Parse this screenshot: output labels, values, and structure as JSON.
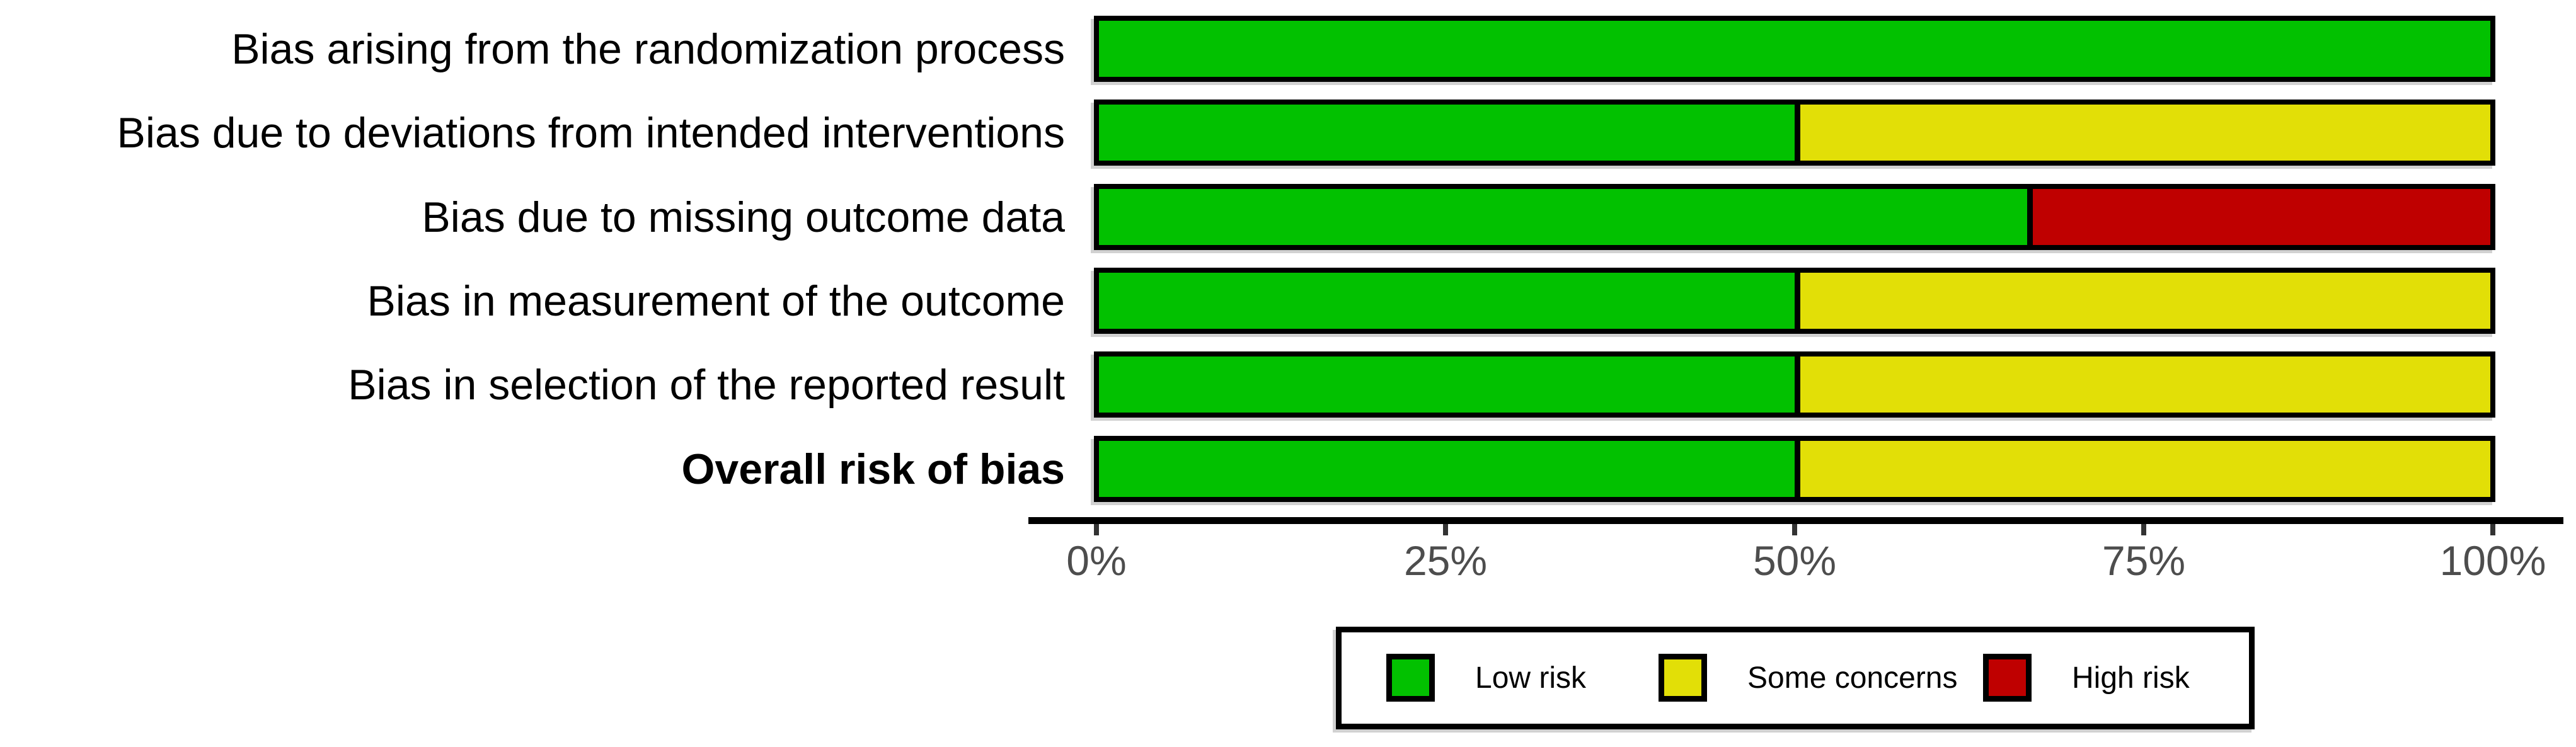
{
  "chart_data": {
    "type": "bar",
    "orientation": "horizontal-stacked",
    "title": "",
    "xlabel": "",
    "ylabel": "",
    "xlim": [
      0,
      100
    ],
    "grid": false,
    "legend_position": "bottom",
    "categories": [
      "Bias arising from the randomization process",
      "Bias due to deviations from intended interventions",
      "Bias due to missing outcome data",
      "Bias in measurement of the outcome",
      "Bias in selection of the reported result",
      "Overall risk of bias"
    ],
    "bold_categories": [
      "Overall risk of bias"
    ],
    "series": [
      {
        "name": "Low risk",
        "color": "#02C100",
        "values": [
          100,
          50,
          66.7,
          50,
          50,
          50
        ]
      },
      {
        "name": "Some concerns",
        "color": "#E2DF07",
        "values": [
          0,
          50,
          0,
          50,
          50,
          50
        ]
      },
      {
        "name": "High risk",
        "color": "#BF0000",
        "values": [
          0,
          0,
          33.3,
          0,
          0,
          0
        ]
      }
    ],
    "x_ticks": [
      {
        "label": "0%",
        "value": 0
      },
      {
        "label": "25%",
        "value": 25
      },
      {
        "label": "50%",
        "value": 50
      },
      {
        "label": "75%",
        "value": 75
      },
      {
        "label": "100%",
        "value": 100
      }
    ]
  },
  "colors": {
    "low_risk": "#02C100",
    "some_concerns": "#E2DF07",
    "high_risk": "#BF0000",
    "bar_border": "#000000",
    "axis_line": "#000000",
    "tick_label_text": "#4d4d4d",
    "background": "#ffffff"
  }
}
